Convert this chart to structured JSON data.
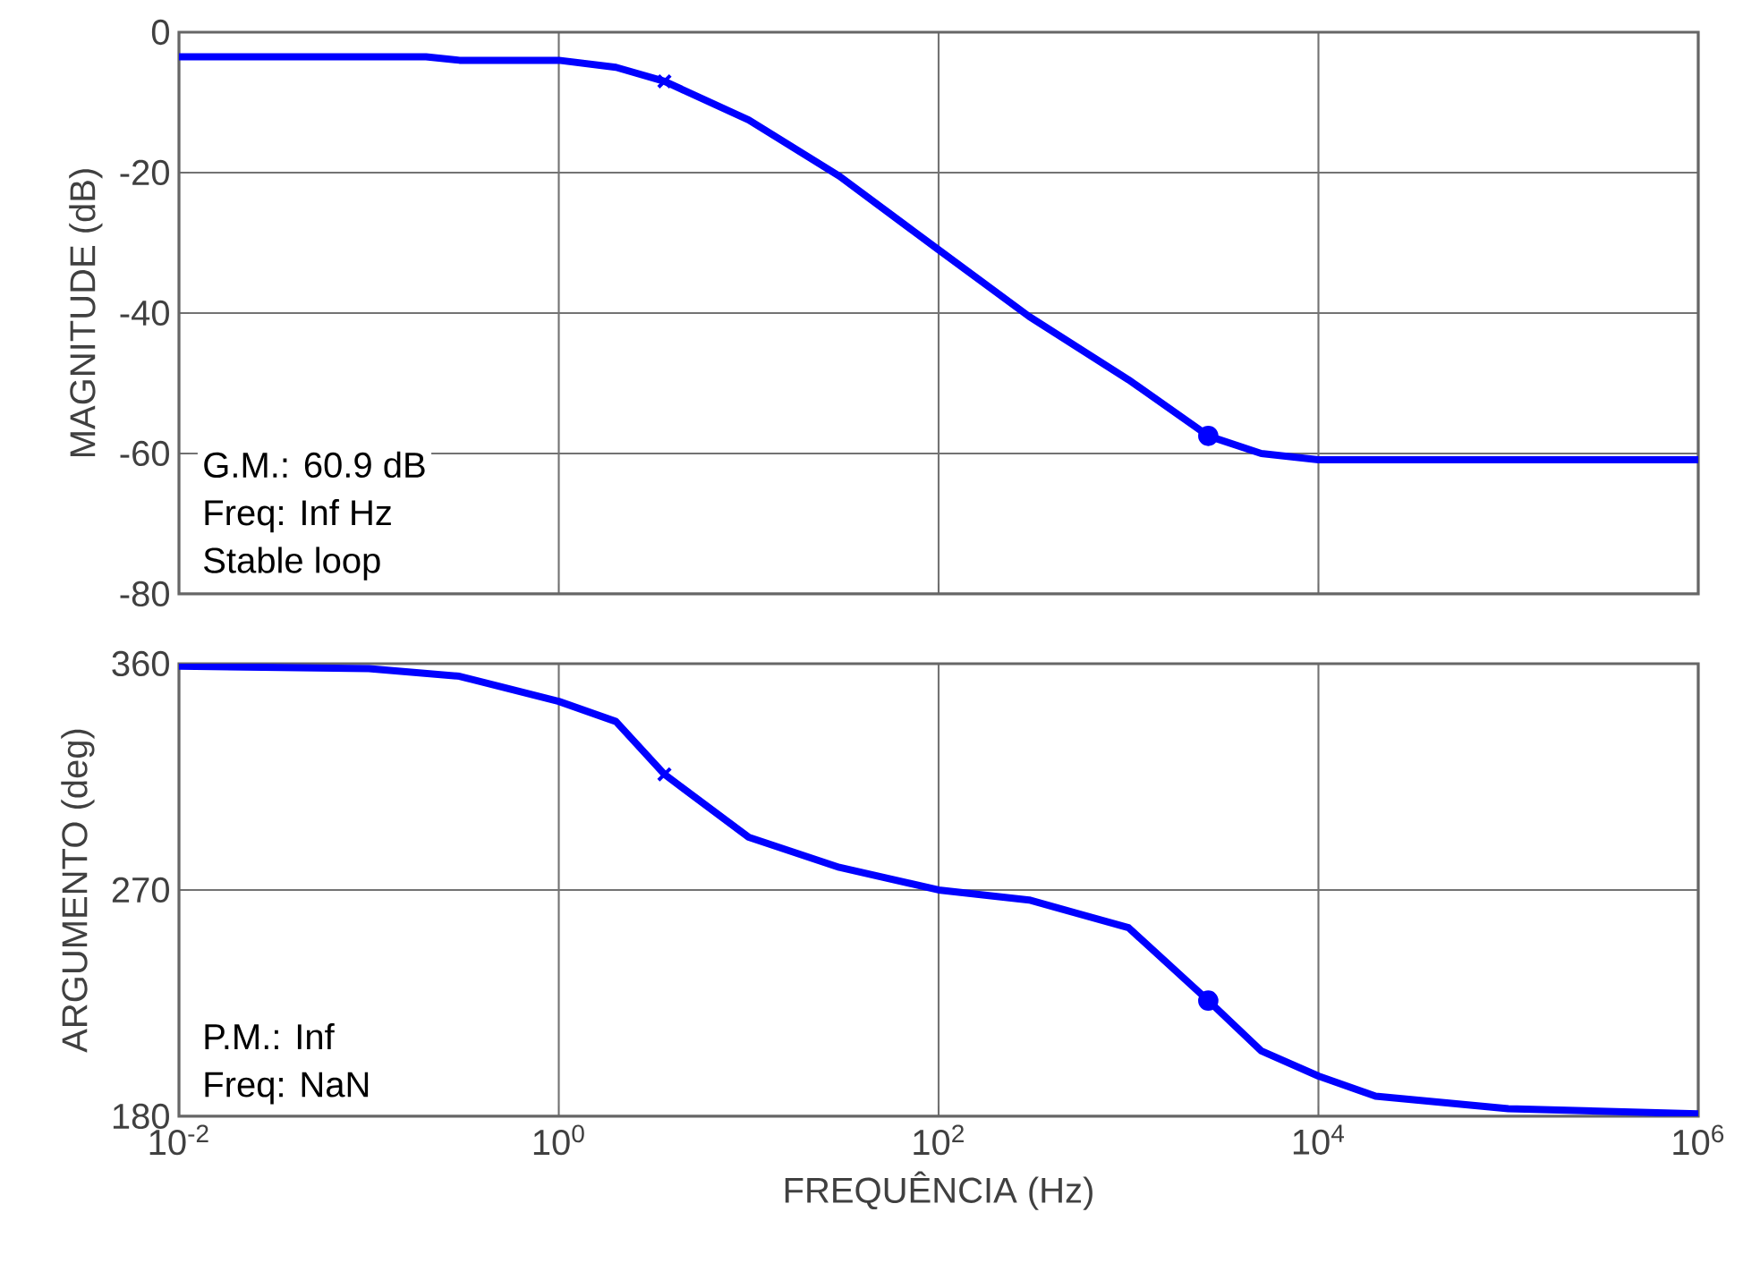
{
  "chart_data": [
    {
      "type": "line",
      "ylabel": "MAGNITUDE (dB)",
      "log": "x",
      "grid": true,
      "tick_labels": "y",
      "line_style": "solid",
      "xlim": [
        0.01,
        1000000
      ],
      "xticks": [
        {
          "value": 0.01,
          "label": null
        },
        {
          "value": 1,
          "label": null
        },
        {
          "value": 100,
          "label": null
        },
        {
          "value": 10000,
          "label": null
        },
        {
          "value": 1000000,
          "label": null
        }
      ],
      "ylim": [
        -80,
        0
      ],
      "yticks": [
        -80,
        -60,
        -40,
        -20,
        0
      ],
      "annotations": [
        "G.M.: 60.9 dB",
        "Freq: Inf Hz",
        "Stable loop"
      ],
      "series": [
        {
          "marker": "none",
          "color": "#0000ff",
          "x": [
            0.01,
            0.2,
            0.3,
            1,
            2,
            3.6,
            10,
            30,
            100,
            300,
            1000,
            2630,
            5000,
            10000,
            1000000
          ],
          "values": [
            -3.5,
            -3.5,
            -4,
            -4,
            -5,
            -7,
            -12.5,
            -20.5,
            -31,
            -40.5,
            -49.5,
            -57.5,
            -60,
            -60.9,
            -60.9
          ]
        },
        {
          "type": "scatter",
          "marker": "cross",
          "color": "#0000ff",
          "x": [
            3.6
          ],
          "values": [
            -7
          ]
        },
        {
          "type": "scatter",
          "marker": "circle",
          "color": "#0000ff",
          "x": [
            2630
          ],
          "values": [
            -57.5
          ]
        }
      ]
    },
    {
      "type": "line",
      "ylabel": "ARGUMENTO (deg)",
      "xlabel": "FREQUÊNCIA (Hz)",
      "log": "x",
      "grid": true,
      "line_style": "solid",
      "xlim": [
        0.01,
        1000000
      ],
      "xticks": [
        {
          "value": 0.01,
          "label": "10$^{-2}$"
        },
        {
          "value": 1,
          "label": "10$^{0}$"
        },
        {
          "value": 100,
          "label": "10$^{2}$"
        },
        {
          "value": 10000,
          "label": "10$^{4}$"
        },
        {
          "value": 1000000,
          "label": "10$^{6}$"
        }
      ],
      "ylim": [
        180,
        360
      ],
      "yticks": [
        180,
        270,
        360
      ],
      "annotations": [
        "P.M.: Inf",
        "Freq: NaN"
      ],
      "series": [
        {
          "marker": "none",
          "color": "#0000ff",
          "x": [
            0.01,
            0.1,
            0.3,
            1,
            2,
            3.6,
            10,
            30,
            100,
            300,
            1000,
            2630,
            5000,
            10000,
            20000,
            100000,
            1000000
          ],
          "values": [
            359,
            358,
            355,
            345,
            337,
            316,
            291,
            279,
            270,
            266,
            255,
            226,
            206,
            196,
            188,
            183,
            181
          ]
        },
        {
          "type": "scatter",
          "marker": "cross",
          "color": "#0000ff",
          "x": [
            3.6
          ],
          "values": [
            316
          ]
        },
        {
          "type": "scatter",
          "marker": "circle",
          "color": "#0000ff",
          "x": [
            2630
          ],
          "values": [
            226
          ]
        }
      ]
    }
  ]
}
